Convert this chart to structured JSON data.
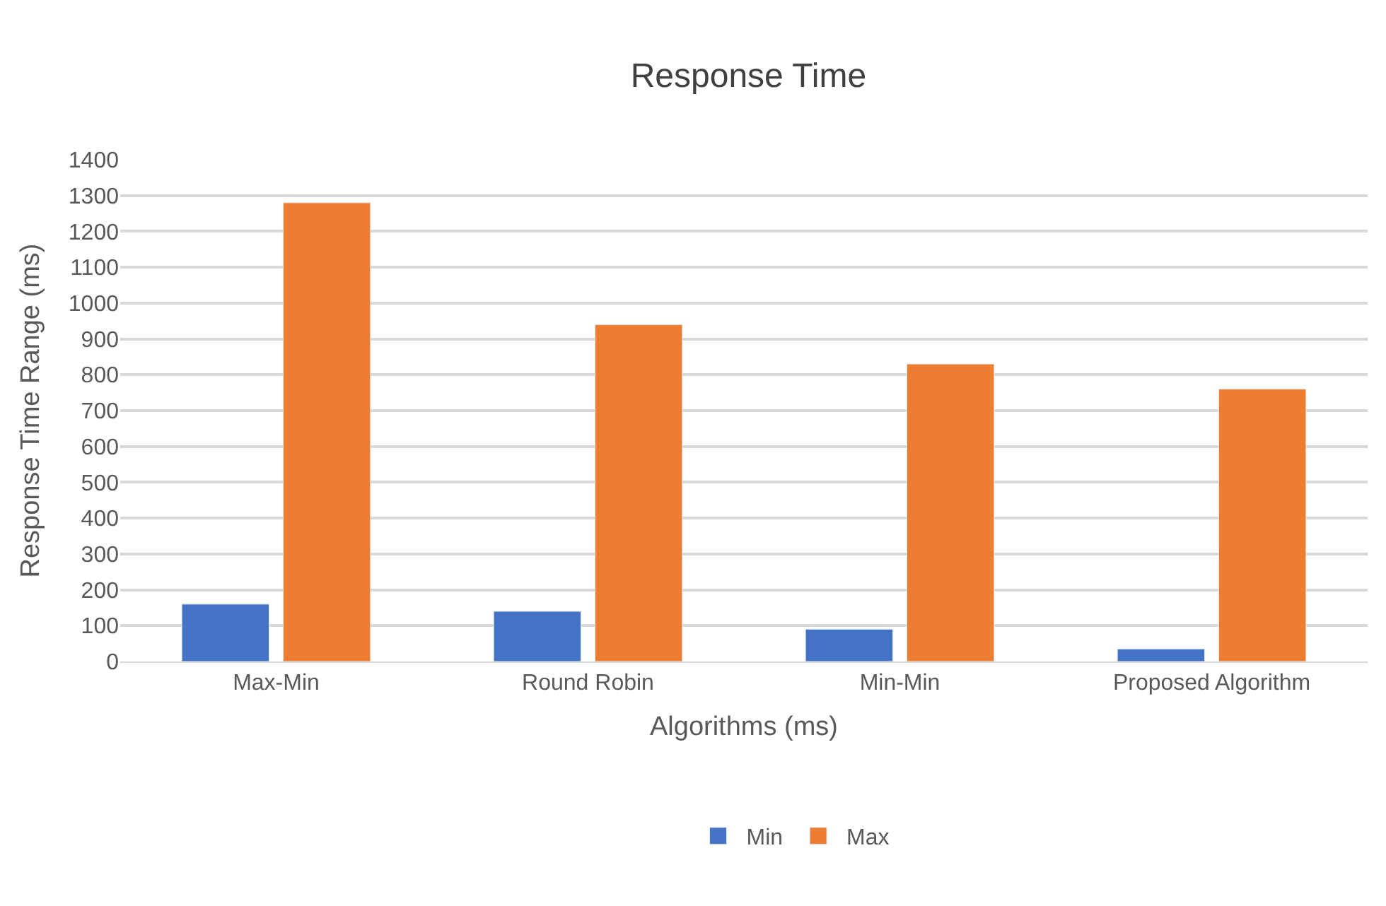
{
  "chart_data": {
    "type": "bar",
    "title": "Response Time",
    "xlabel": "Algorithms (ms)",
    "ylabel": "Response Time Range (ms)",
    "categories": [
      "Max-Min",
      "Round Robin",
      "Min-Min",
      "Proposed Algorithm"
    ],
    "series": [
      {
        "name": "Min",
        "color": "#4472c4",
        "values": [
          160,
          140,
          90,
          35
        ]
      },
      {
        "name": "Max",
        "color": "#ed7d31",
        "values": [
          1280,
          940,
          830,
          760
        ]
      }
    ],
    "ylim": [
      0,
      1400
    ],
    "yticks": [
      0,
      100,
      200,
      300,
      400,
      500,
      600,
      700,
      800,
      900,
      1000,
      1100,
      1200,
      1300,
      1400
    ],
    "grid": "y",
    "legend": "bottom"
  }
}
